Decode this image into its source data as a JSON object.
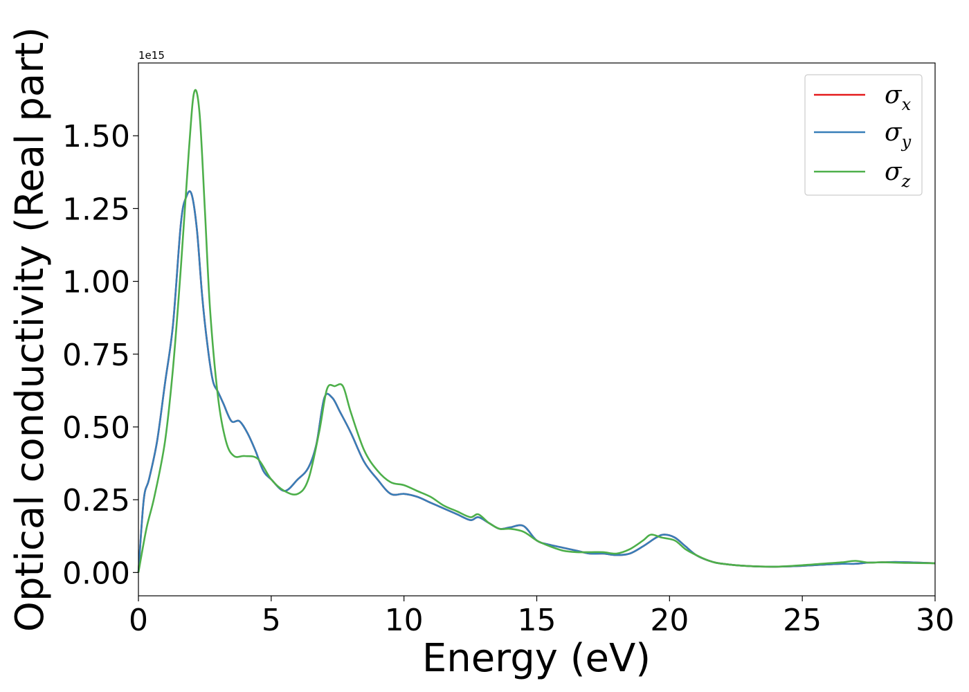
{
  "chart_data": {
    "type": "line",
    "title": "",
    "xlabel": "Energy (eV)",
    "ylabel": "Optical conductivity (Real part)",
    "y_offset_label": "1e15",
    "xlim": [
      0,
      30
    ],
    "ylim": [
      -0.08,
      1.75
    ],
    "x_ticks": [
      0,
      5,
      10,
      15,
      20,
      25,
      30
    ],
    "x_tick_labels": [
      "0",
      "5",
      "10",
      "15",
      "20",
      "25",
      "30"
    ],
    "y_ticks": [
      0,
      0.25,
      0.5,
      0.75,
      1.0,
      1.25,
      1.5
    ],
    "y_tick_labels": [
      "0.00",
      "0.25",
      "0.50",
      "0.75",
      "1.00",
      "1.25",
      "1.50"
    ],
    "grid": false,
    "legend_position": "top-right",
    "series": [
      {
        "name": "σ",
        "subscript": "x",
        "color": "#e41a1c",
        "x": [
          0,
          0.2,
          0.4,
          0.7,
          1.0,
          1.3,
          1.6,
          1.8,
          2.0,
          2.2,
          2.4,
          2.6,
          2.8,
          3.0,
          3.2,
          3.5,
          3.8,
          4.1,
          4.4,
          4.7,
          5.0,
          5.5,
          6.0,
          6.4,
          6.7,
          7.0,
          7.3,
          7.6,
          8.0,
          8.5,
          9.0,
          9.5,
          10.0,
          10.5,
          11.0,
          11.5,
          12.0,
          12.5,
          12.8,
          13.2,
          13.6,
          14.0,
          14.5,
          15.0,
          15.5,
          16.0,
          16.5,
          17.0,
          17.5,
          18.0,
          18.5,
          19.0,
          19.5,
          19.8,
          20.2,
          20.6,
          21.0,
          21.5,
          22.0,
          23.0,
          24.0,
          25.0,
          26.0,
          26.5,
          27.0,
          27.5,
          28.0,
          28.5,
          29.0,
          30.0
        ],
        "values": [
          0,
          0.25,
          0.32,
          0.45,
          0.65,
          0.85,
          1.2,
          1.29,
          1.3,
          1.18,
          0.95,
          0.78,
          0.66,
          0.62,
          0.58,
          0.52,
          0.52,
          0.48,
          0.42,
          0.35,
          0.32,
          0.28,
          0.32,
          0.36,
          0.44,
          0.6,
          0.6,
          0.55,
          0.48,
          0.38,
          0.32,
          0.27,
          0.27,
          0.26,
          0.24,
          0.22,
          0.2,
          0.18,
          0.19,
          0.17,
          0.15,
          0.155,
          0.16,
          0.11,
          0.095,
          0.085,
          0.075,
          0.065,
          0.065,
          0.06,
          0.065,
          0.09,
          0.12,
          0.13,
          0.12,
          0.09,
          0.06,
          0.04,
          0.03,
          0.022,
          0.02,
          0.023,
          0.028,
          0.03,
          0.03,
          0.034,
          0.035,
          0.036,
          0.035,
          0.032
        ]
      },
      {
        "name": "σ",
        "subscript": "y",
        "color": "#377eb8",
        "x": [
          0,
          0.2,
          0.4,
          0.7,
          1.0,
          1.3,
          1.6,
          1.8,
          2.0,
          2.2,
          2.4,
          2.6,
          2.8,
          3.0,
          3.2,
          3.5,
          3.8,
          4.1,
          4.4,
          4.7,
          5.0,
          5.5,
          6.0,
          6.4,
          6.7,
          7.0,
          7.3,
          7.6,
          8.0,
          8.5,
          9.0,
          9.5,
          10.0,
          10.5,
          11.0,
          11.5,
          12.0,
          12.5,
          12.8,
          13.2,
          13.6,
          14.0,
          14.5,
          15.0,
          15.5,
          16.0,
          16.5,
          17.0,
          17.5,
          18.0,
          18.5,
          19.0,
          19.5,
          19.8,
          20.2,
          20.6,
          21.0,
          21.5,
          22.0,
          23.0,
          24.0,
          25.0,
          26.0,
          26.5,
          27.0,
          27.5,
          28.0,
          28.5,
          29.0,
          30.0
        ],
        "values": [
          0,
          0.25,
          0.32,
          0.45,
          0.65,
          0.85,
          1.2,
          1.29,
          1.3,
          1.18,
          0.95,
          0.78,
          0.66,
          0.62,
          0.58,
          0.52,
          0.52,
          0.48,
          0.42,
          0.35,
          0.32,
          0.28,
          0.32,
          0.36,
          0.44,
          0.6,
          0.6,
          0.55,
          0.48,
          0.38,
          0.32,
          0.27,
          0.27,
          0.26,
          0.24,
          0.22,
          0.2,
          0.18,
          0.19,
          0.17,
          0.15,
          0.155,
          0.16,
          0.11,
          0.095,
          0.085,
          0.075,
          0.065,
          0.065,
          0.06,
          0.065,
          0.09,
          0.12,
          0.13,
          0.12,
          0.09,
          0.06,
          0.04,
          0.03,
          0.022,
          0.02,
          0.023,
          0.028,
          0.03,
          0.03,
          0.034,
          0.035,
          0.036,
          0.035,
          0.032
        ]
      },
      {
        "name": "σ",
        "subscript": "z",
        "color": "#4daf4a",
        "x": [
          0,
          0.3,
          0.6,
          1.0,
          1.3,
          1.6,
          1.9,
          2.1,
          2.3,
          2.5,
          2.7,
          3.0,
          3.3,
          3.6,
          4.0,
          4.5,
          5.0,
          5.5,
          6.0,
          6.4,
          6.8,
          7.1,
          7.4,
          7.7,
          8.0,
          8.5,
          9.0,
          9.5,
          10.0,
          10.5,
          11.0,
          11.5,
          12.0,
          12.5,
          12.8,
          13.2,
          13.6,
          14.0,
          14.5,
          15.0,
          15.5,
          16.0,
          16.5,
          17.0,
          17.5,
          18.0,
          18.5,
          19.0,
          19.3,
          19.7,
          20.2,
          20.6,
          21.0,
          21.5,
          22.0,
          23.0,
          24.0,
          25.0,
          26.0,
          26.5,
          27.0,
          27.5,
          28.0,
          29.0,
          30.0
        ],
        "values": [
          0,
          0.15,
          0.26,
          0.45,
          0.7,
          1.05,
          1.45,
          1.65,
          1.58,
          1.25,
          0.9,
          0.6,
          0.45,
          0.4,
          0.4,
          0.39,
          0.32,
          0.28,
          0.27,
          0.32,
          0.48,
          0.63,
          0.64,
          0.64,
          0.55,
          0.42,
          0.35,
          0.31,
          0.3,
          0.28,
          0.26,
          0.23,
          0.21,
          0.19,
          0.2,
          0.17,
          0.15,
          0.15,
          0.14,
          0.11,
          0.09,
          0.075,
          0.07,
          0.07,
          0.07,
          0.065,
          0.08,
          0.11,
          0.13,
          0.12,
          0.11,
          0.08,
          0.06,
          0.04,
          0.03,
          0.022,
          0.02,
          0.025,
          0.032,
          0.035,
          0.04,
          0.034,
          0.035,
          0.033,
          0.032
        ]
      }
    ]
  }
}
